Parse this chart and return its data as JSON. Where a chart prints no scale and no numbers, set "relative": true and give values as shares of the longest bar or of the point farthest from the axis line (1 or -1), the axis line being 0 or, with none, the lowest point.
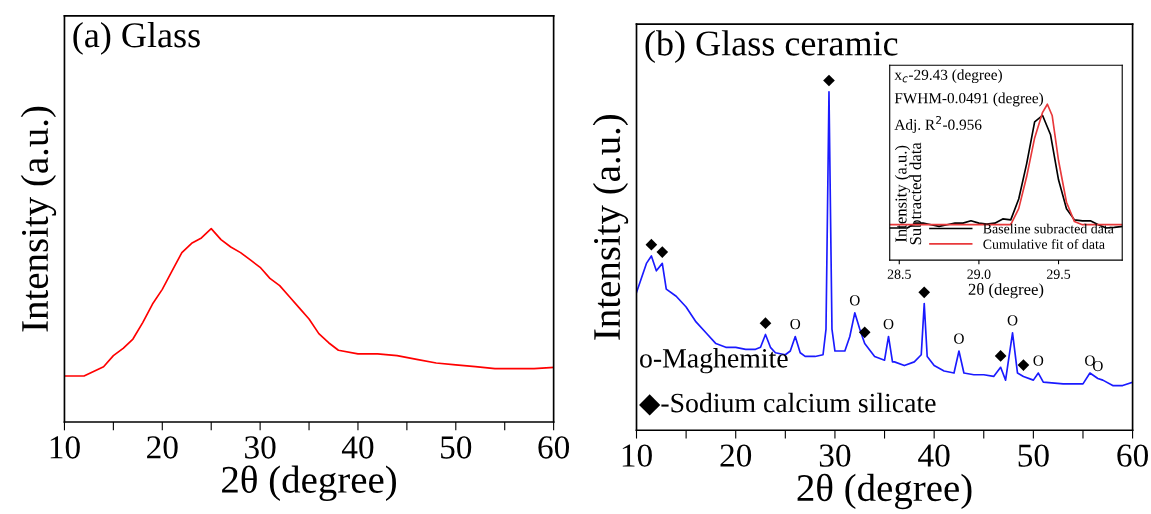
{
  "chart_data": [
    {
      "type": "line",
      "title": "(a) Glass",
      "xlabel": "2θ (degree)",
      "ylabel": "Intensity (a.u.)",
      "relative": true,
      "tick_labels": "x",
      "grid": false,
      "legend": false,
      "xlim": [
        10,
        60
      ],
      "xticks": [
        10,
        {
          "value": 15,
          "label": null
        },
        20,
        {
          "value": 25,
          "label": null
        },
        30,
        {
          "value": 35,
          "label": null
        },
        40,
        {
          "value": 45,
          "label": null
        },
        50,
        {
          "value": 55,
          "label": null
        },
        60
      ],
      "series": [
        {
          "color": "#ff0000",
          "x": [
            10,
            12,
            14,
            15,
            16,
            17,
            18,
            19,
            20,
            21,
            22,
            23,
            24,
            25,
            26,
            27,
            28,
            29,
            30,
            31,
            32,
            33,
            34,
            35,
            36,
            37,
            38,
            40,
            42,
            44,
            46,
            48,
            50,
            52,
            54,
            56,
            58,
            60
          ],
          "values": [
            0.238,
            0.238,
            0.286,
            0.343,
            0.381,
            0.429,
            0.514,
            0.61,
            0.686,
            0.781,
            0.876,
            0.924,
            0.952,
            1,
            0.943,
            0.905,
            0.876,
            0.838,
            0.8,
            0.743,
            0.705,
            0.648,
            0.59,
            0.533,
            0.457,
            0.41,
            0.371,
            0.352,
            0.352,
            0.343,
            0.324,
            0.305,
            0.295,
            0.286,
            0.276,
            0.276,
            0.276,
            0.282
          ]
        }
      ]
    },
    {
      "type": "line",
      "title": "(b) Glass ceramic",
      "xlabel": "2θ (degree)",
      "ylabel": "Intensity (a.u.)",
      "relative": true,
      "tick_labels": "x",
      "grid": false,
      "legend": false,
      "xlim": [
        10,
        60
      ],
      "xticks": [
        10,
        {
          "value": 15,
          "label": null
        },
        20,
        {
          "value": 25,
          "label": null
        },
        30,
        {
          "value": 35,
          "label": null
        },
        40,
        {
          "value": 45,
          "label": null
        },
        50,
        {
          "value": 55,
          "label": null
        },
        60
      ],
      "series": [
        {
          "color": "#1a1aff",
          "x": [
            10,
            10.5,
            11,
            11.5,
            12,
            12.6,
            13,
            14,
            15,
            16,
            17,
            18,
            19,
            20,
            21,
            22,
            22.5,
            23,
            23.5,
            24,
            25,
            25.5,
            26,
            26.5,
            27,
            28,
            28.8,
            29.1,
            29.4,
            29.7,
            30,
            31,
            31.5,
            32,
            32.5,
            33,
            34,
            35,
            35.4,
            35.8,
            36,
            37,
            38,
            38.7,
            39,
            39.3,
            40,
            41,
            42,
            42.5,
            43,
            44,
            45,
            46,
            46.7,
            47.2,
            47.9,
            48.4,
            49,
            50,
            50.5,
            51,
            53,
            55,
            55.7,
            56.5,
            57,
            58,
            59,
            60
          ],
          "values": [
            0.407,
            0.45,
            0.493,
            0.515,
            0.471,
            0.493,
            0.417,
            0.396,
            0.364,
            0.32,
            0.288,
            0.256,
            0.245,
            0.245,
            0.239,
            0.239,
            0.245,
            0.283,
            0.245,
            0.229,
            0.223,
            0.234,
            0.277,
            0.229,
            0.218,
            0.218,
            0.223,
            0.299,
            1,
            0.299,
            0.234,
            0.234,
            0.277,
            0.347,
            0.299,
            0.256,
            0.218,
            0.207,
            0.277,
            0.202,
            0.202,
            0.191,
            0.202,
            0.223,
            0.374,
            0.218,
            0.191,
            0.175,
            0.169,
            0.234,
            0.169,
            0.164,
            0.164,
            0.159,
            0.186,
            0.148,
            0.288,
            0.169,
            0.159,
            0.148,
            0.169,
            0.142,
            0.137,
            0.137,
            0.169,
            0.153,
            0.148,
            0.132,
            0.132,
            0.142
          ]
        }
      ],
      "annotations": [
        {
          "text": "◆",
          "x": 11.5,
          "y": 0.515
        },
        {
          "text": "◆",
          "x": 12.6,
          "y": 0.493
        },
        {
          "text": "◆",
          "x": 23,
          "y": 0.283
        },
        {
          "text": "◆",
          "x": 29.4,
          "y": 1
        },
        {
          "text": "◆",
          "x": 33,
          "y": 0.256
        },
        {
          "text": "◆",
          "x": 39,
          "y": 0.374
        },
        {
          "text": "◆",
          "x": 46.7,
          "y": 0.186
        },
        {
          "text": "◆",
          "x": 49,
          "y": 0.159
        },
        {
          "text": "O",
          "x": 26,
          "y": 0.277
        },
        {
          "text": "O",
          "x": 32,
          "y": 0.347
        },
        {
          "text": "O",
          "x": 35.4,
          "y": 0.277
        },
        {
          "text": "O",
          "x": 42.5,
          "y": 0.234
        },
        {
          "text": "O",
          "x": 47.9,
          "y": 0.288
        },
        {
          "text": "O",
          "x": 50.5,
          "y": 0.169
        },
        {
          "text": "O",
          "x": 55.7,
          "y": 0.169
        },
        {
          "text": "O",
          "x": 56.5,
          "y": 0.153
        },
        "o-Maghemite",
        "◆-Sodium calcium silicate"
      ]
    },
    {
      "type": "line",
      "xlabel": "2θ (degree)",
      "ylabel": "Intensity (a.u.)\nSubtracted data",
      "relative": true,
      "tick_labels": "x",
      "grid": false,
      "legend": "bottom right",
      "xlim": [
        28.44,
        29.9
      ],
      "xticks": [
        {
          "value": 28.5,
          "label": "28.5"
        },
        {
          "value": 29.0,
          "label": "29.0"
        },
        {
          "value": 29.5,
          "label": "29.5"
        }
      ],
      "series": [
        {
          "name": "Baseline subracted data",
          "color": "#000000",
          "x": [
            28.44,
            28.5,
            28.55,
            28.6,
            28.65,
            28.7,
            28.75,
            28.8,
            28.85,
            28.9,
            28.95,
            29.0,
            29.05,
            29.1,
            29.15,
            29.2,
            29.25,
            29.3,
            29.35,
            29.4,
            29.45,
            29.5,
            29.55,
            29.6,
            29.65,
            29.7,
            29.75,
            29.8,
            29.85,
            29.9
          ],
          "values": [
            0.206,
            0.206,
            0.206,
            0.237,
            0.237,
            0.227,
            0.216,
            0.227,
            0.237,
            0.237,
            0.252,
            0.237,
            0.231,
            0.237,
            0.264,
            0.258,
            0.392,
            0.619,
            0.887,
            0.928,
            0.804,
            0.515,
            0.33,
            0.258,
            0.252,
            0.252,
            0.227,
            0.206,
            0.21,
            0.216
          ]
        },
        {
          "name": "Cumulative fit of data",
          "color": "#e8393b",
          "x": [
            28.44,
            29.2,
            29.25,
            29.3,
            29.35,
            29.4,
            29.43,
            29.46,
            29.5,
            29.55,
            29.6,
            29.65,
            29.9
          ],
          "values": [
            0.227,
            0.227,
            0.33,
            0.536,
            0.784,
            0.948,
            1,
            0.928,
            0.639,
            0.371,
            0.247,
            0.227,
            0.227
          ]
        }
      ],
      "annotations": [
        "x$_{c}$-29.43 (degree)",
        "FWHM-0.0491 (degree)",
        "Adj. R$^{2}$-0.956"
      ]
    }
  ]
}
